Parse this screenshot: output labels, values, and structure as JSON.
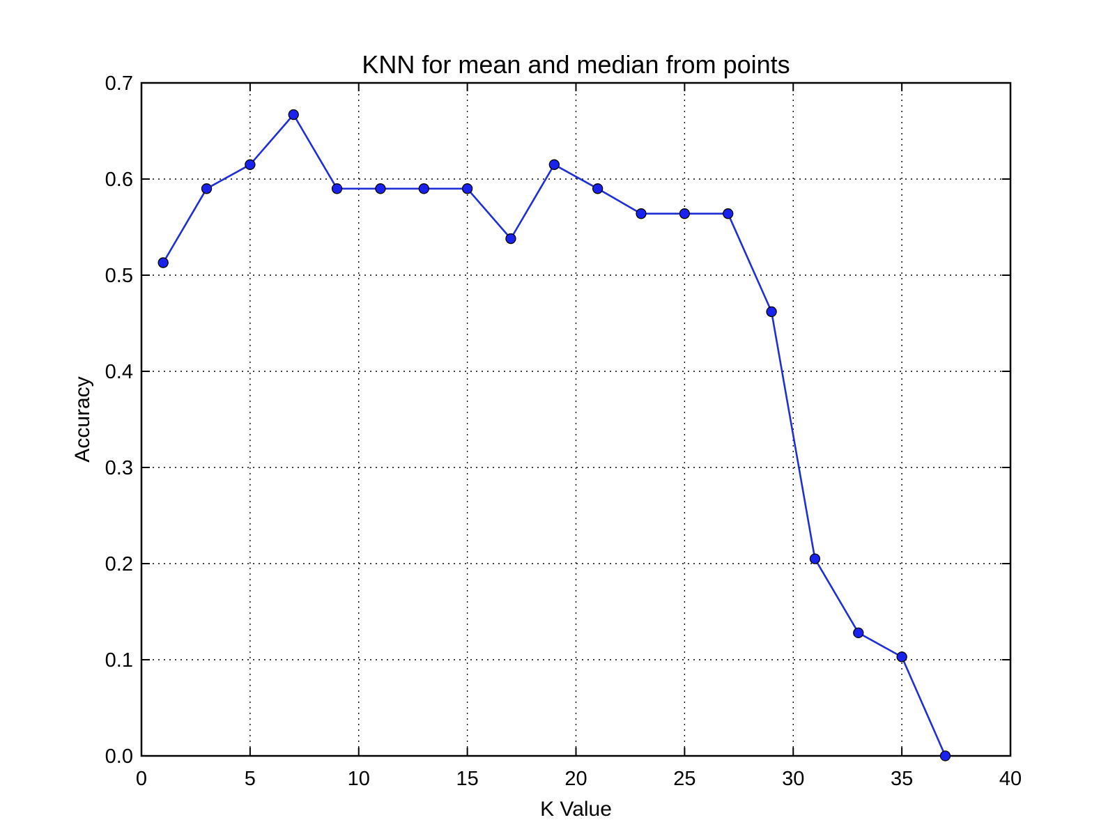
{
  "colors": {
    "series_line": "#1f2fd6",
    "marker_fill": "#1a22f0",
    "marker_edge": "#000000"
  },
  "chart_data": {
    "type": "line",
    "title": "KNN for mean and median from points",
    "xlabel": "K Value",
    "ylabel": "Accuracy",
    "xlim": [
      0,
      40
    ],
    "ylim": [
      0.0,
      0.7
    ],
    "xticks": [
      0,
      5,
      10,
      15,
      20,
      25,
      30,
      35,
      40
    ],
    "yticks": [
      0.0,
      0.1,
      0.2,
      0.3,
      0.4,
      0.5,
      0.6,
      0.7
    ],
    "xtick_labels": [
      "0",
      "5",
      "10",
      "15",
      "20",
      "25",
      "30",
      "35",
      "40"
    ],
    "ytick_labels": [
      "0.0",
      "0.1",
      "0.2",
      "0.3",
      "0.4",
      "0.5",
      "0.6",
      "0.7"
    ],
    "grid": true,
    "legend": "none",
    "series": [
      {
        "x": [
          1,
          3,
          5,
          7,
          9,
          11,
          13,
          15,
          17,
          19,
          21,
          23,
          25,
          27,
          29,
          31,
          33,
          35,
          37
        ],
        "y": [
          0.513,
          0.59,
          0.615,
          0.667,
          0.59,
          0.59,
          0.59,
          0.59,
          0.538,
          0.615,
          0.59,
          0.564,
          0.564,
          0.564,
          0.462,
          0.205,
          0.128,
          0.103,
          0.0
        ],
        "marker": "circle"
      }
    ]
  }
}
